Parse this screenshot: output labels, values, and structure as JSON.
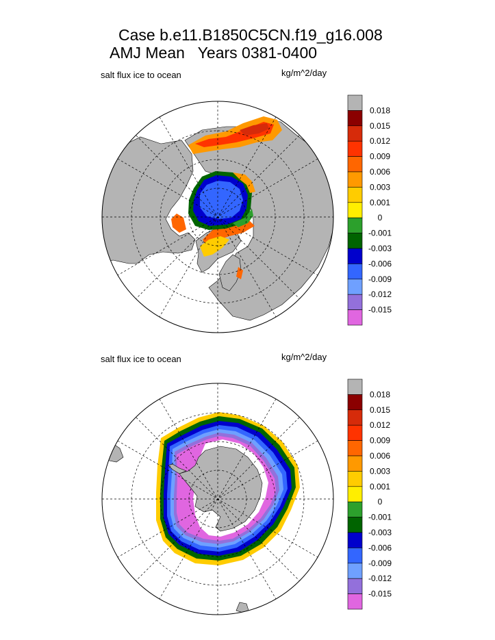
{
  "title_line1": "Case b.e11.B1850C5CN.f19_g16.008",
  "title_line2": "AMJ Mean   Years 0381-0400",
  "colorbar": {
    "colors": [
      "#b4b4b4",
      "#8b0000",
      "#d62b0a",
      "#ff3300",
      "#ff6600",
      "#ff9900",
      "#ffcc00",
      "#ffee00",
      "#2ca02c",
      "#006400",
      "#0000cc",
      "#3366ff",
      "#6fa0ff",
      "#9370db",
      "#e066e0"
    ],
    "tick_labels": [
      "0.018",
      "0.015",
      "0.012",
      "0.009",
      "0.006",
      "0.003",
      "0.001",
      "0",
      "-0.001",
      "-0.003",
      "-0.006",
      "-0.009",
      "-0.012",
      "-0.015"
    ]
  },
  "chart_data": [
    {
      "type": "heatmap",
      "projection": "polar-stereographic",
      "hemisphere": "north",
      "title": "salt flux ice to ocean",
      "units": "kg/m^2/day",
      "levels": [
        0.018,
        0.015,
        0.012,
        0.009,
        0.006,
        0.003,
        0.001,
        0,
        -0.001,
        -0.003,
        -0.006,
        -0.009,
        -0.012,
        -0.015
      ],
      "land_color": "#b4b4b4"
    },
    {
      "type": "heatmap",
      "projection": "polar-stereographic",
      "hemisphere": "south",
      "title": "salt flux ice to ocean",
      "units": "kg/m^2/day",
      "levels": [
        0.018,
        0.015,
        0.012,
        0.009,
        0.006,
        0.003,
        0.001,
        0,
        -0.001,
        -0.003,
        -0.006,
        -0.009,
        -0.012,
        -0.015
      ],
      "land_color": "#b4b4b4"
    }
  ]
}
